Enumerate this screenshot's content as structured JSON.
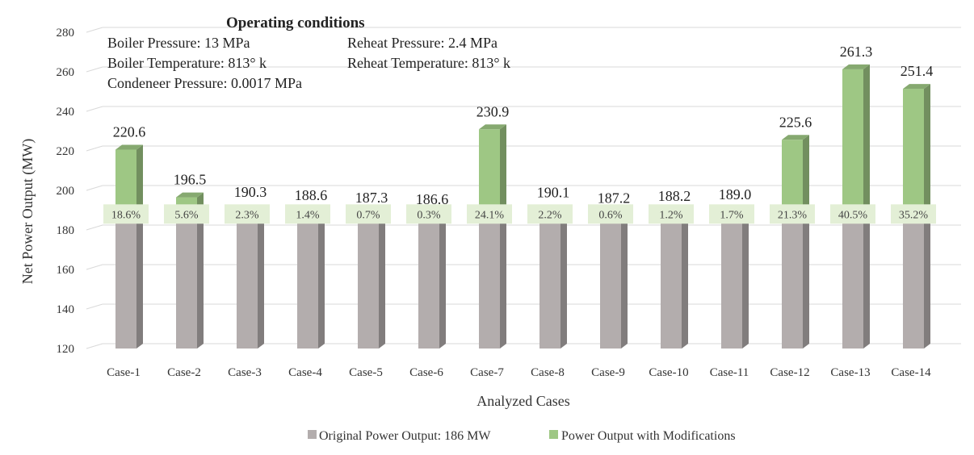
{
  "chart_data": {
    "type": "bar",
    "categories": [
      "Case-1",
      "Case-2",
      "Case-3",
      "Case-4",
      "Case-5",
      "Case-6",
      "Case-7",
      "Case-8",
      "Case-9",
      "Case-10",
      "Case-11",
      "Case-12",
      "Case-13",
      "Case-14"
    ],
    "series": [
      {
        "name": "Original Power Output: 186 MW",
        "values": [
          186,
          186,
          186,
          186,
          186,
          186,
          186,
          186,
          186,
          186,
          186,
          186,
          186,
          186
        ],
        "color": "#b3adad"
      },
      {
        "name": "Power Output with Modifications",
        "values": [
          220.6,
          196.5,
          190.3,
          188.6,
          187.3,
          186.6,
          230.9,
          190.1,
          187.2,
          188.2,
          189.0,
          225.6,
          261.3,
          251.4
        ],
        "color": "#9ec784"
      }
    ],
    "value_labels": [
      "220.6",
      "196.5",
      "190.3",
      "188.6",
      "187.3",
      "186.6",
      "230.9",
      "190.1",
      "187.2",
      "188.2",
      "189.0",
      "225.6",
      "261.3",
      "251.4"
    ],
    "percent_labels": [
      "18.6%",
      "5.6%",
      "2.3%",
      "1.4%",
      "0.7%",
      "0.3%",
      "24.1%",
      "2.2%",
      "0.6%",
      "1.2%",
      "1.7%",
      "21.3%",
      "40.5%",
      "35.2%"
    ],
    "xlabel": "Analyzed Cases",
    "ylabel": "Net Power Output (MW)",
    "ylim": [
      120,
      280
    ],
    "yticks": [
      "120",
      "140",
      "160",
      "180",
      "200",
      "220",
      "240",
      "260",
      "280"
    ],
    "grid": true,
    "legend_position": "bottom",
    "annotation": {
      "title": "Operating conditions",
      "lines": [
        "Boiler Pressure: 13 MPa",
        "Reheat Pressure: 2.4 MPa",
        "Boiler Temperature: 813° k",
        "Reheat Temperature: 813° k",
        "Condeneer Pressure: 0.0017 MPa"
      ]
    }
  }
}
